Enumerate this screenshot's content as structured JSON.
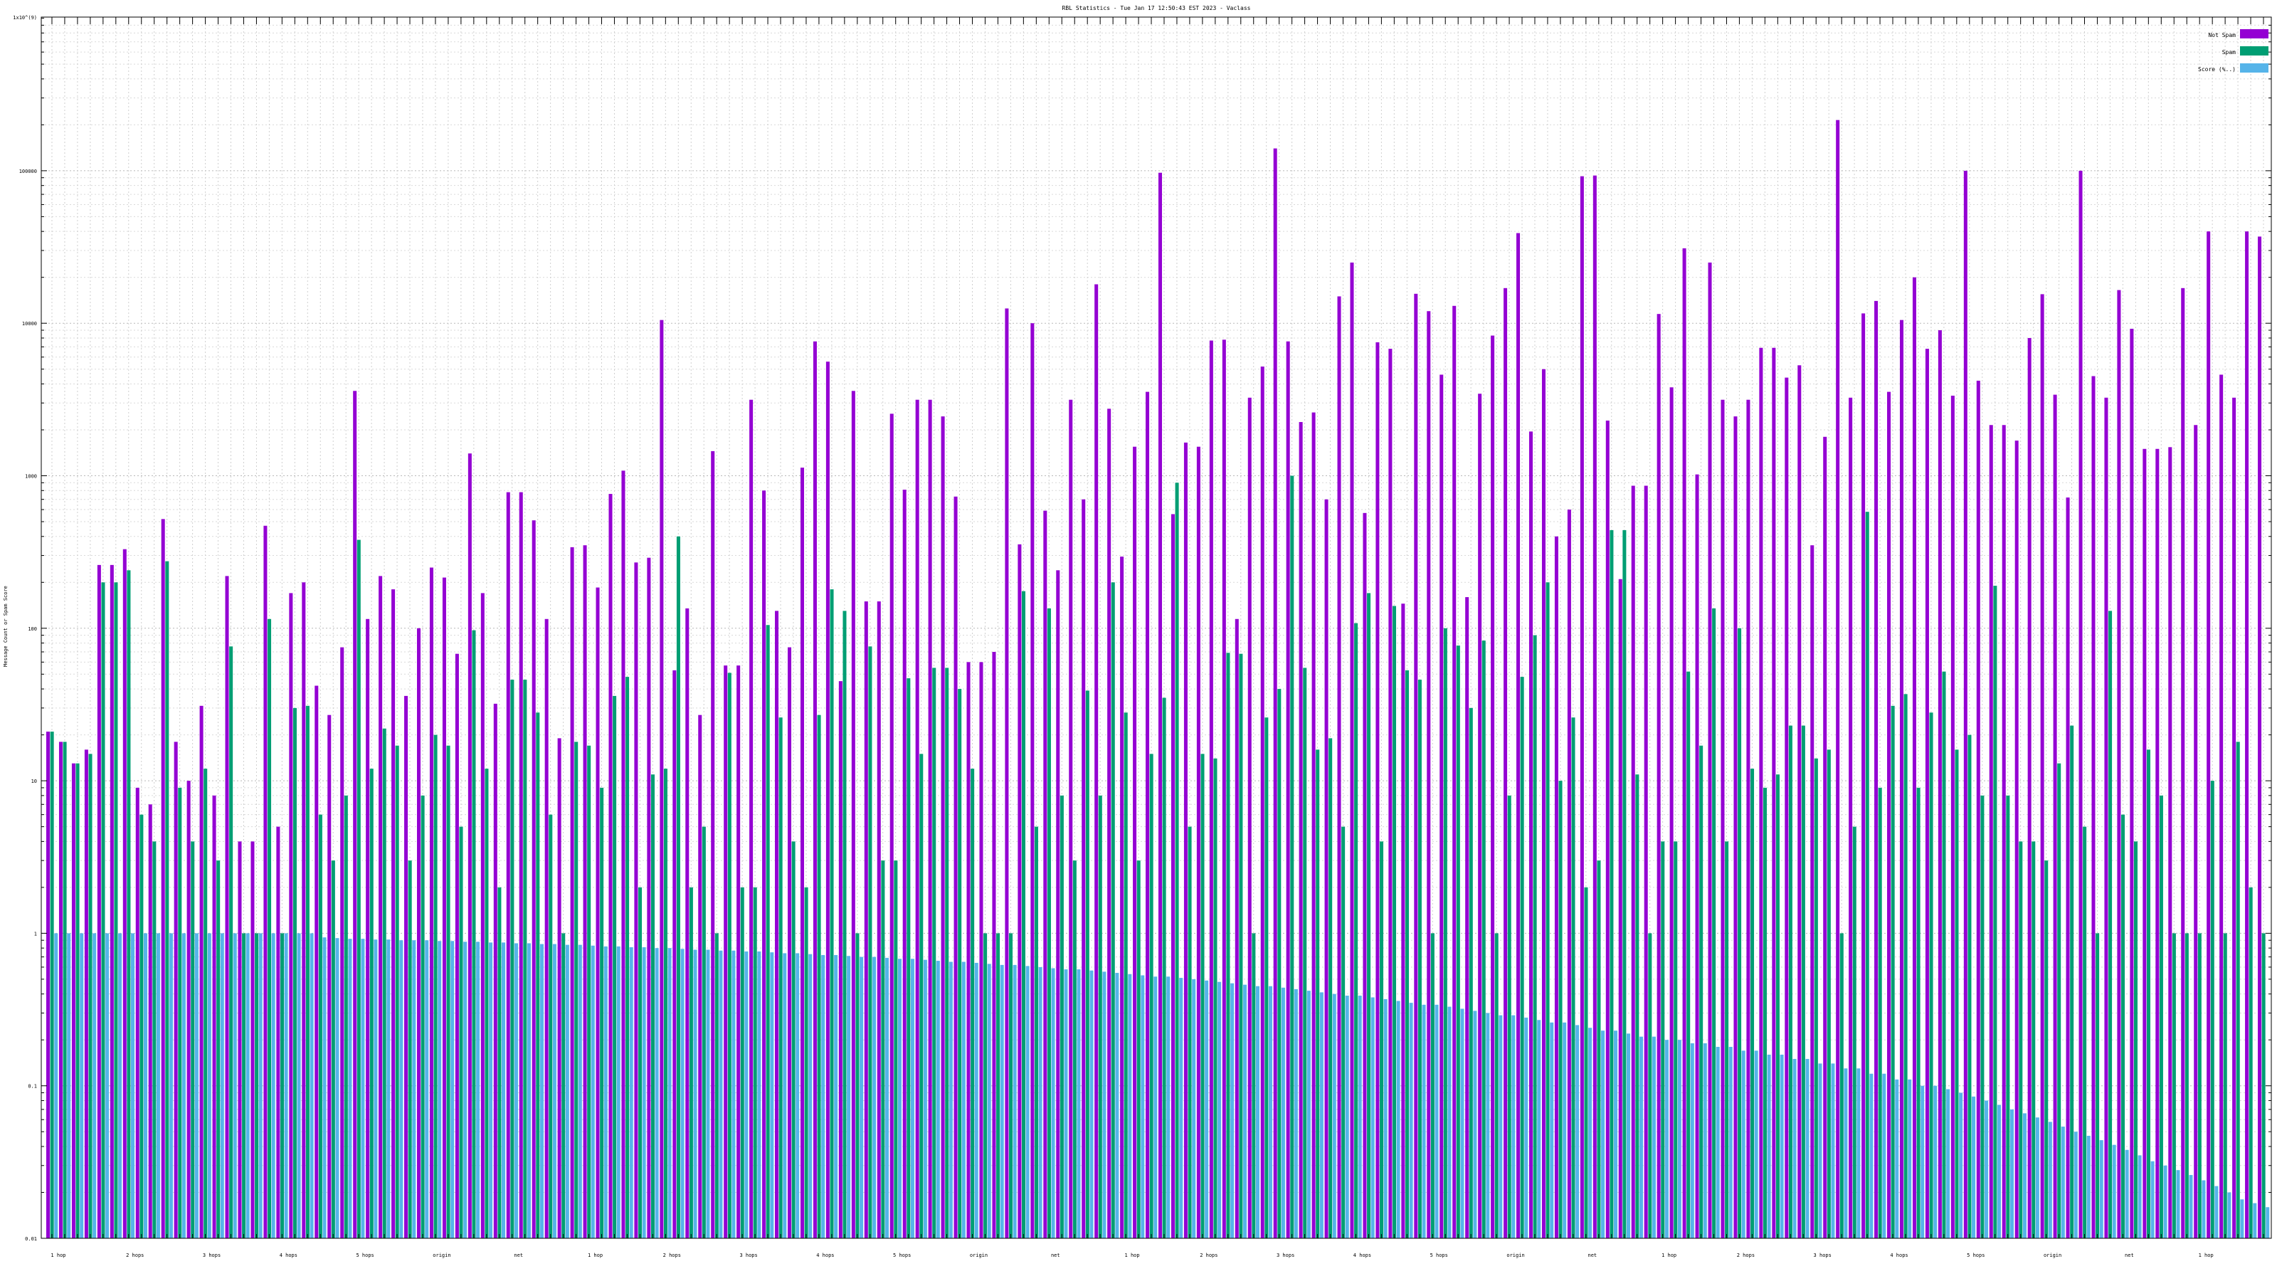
{
  "chart_data": {
    "type": "bar",
    "title": "RBL Statistics - Tue Jan 17 12:50:43 EST 2023 - Vaclass",
    "ylabel": "Message Count or Spam Score",
    "yscale": "log",
    "ylim": [
      0.01,
      1000000000
    ],
    "y_ticks": [
      {
        "value": 0.01,
        "label": "0.01"
      },
      {
        "value": 0.1,
        "label": "0.1"
      },
      {
        "value": 1,
        "label": "1"
      },
      {
        "value": 10,
        "label": "10"
      },
      {
        "value": 100,
        "label": "100"
      },
      {
        "value": 1000,
        "label": "1000"
      },
      {
        "value": 10000,
        "label": "10000"
      },
      {
        "value": 100000,
        "label": "100000"
      },
      {
        "value": 1000000000,
        "label": "1x10^(9)"
      }
    ],
    "grid": true,
    "legend_position": "top-right",
    "category_label_note": "Category labels are rendered too small to be legible in the screenshot; only the repeating hop-count fragments are readable.",
    "label_fragments": [
      "1 hop",
      "2 hops",
      "3 hops",
      "4 hops",
      "5 hops",
      "origin",
      "net"
    ],
    "series": [
      {
        "name": "Not Spam",
        "color": "#9400d3",
        "values": [
          21,
          18,
          13,
          16,
          260,
          260,
          330,
          9,
          7,
          520,
          18,
          10,
          31,
          8,
          220,
          4,
          4,
          470,
          5,
          170,
          200,
          42,
          27,
          75,
          3600,
          115,
          220,
          180,
          36,
          100,
          250,
          215,
          68,
          1400,
          170,
          32,
          780,
          780,
          510,
          115,
          19,
          340,
          350,
          185,
          760,
          1080,
          270,
          290,
          10500,
          53,
          135,
          27,
          1450,
          57,
          57,
          3150,
          800,
          130,
          75,
          1130,
          7600,
          5600,
          45,
          3600,
          150,
          150,
          2550,
          810,
          3150,
          3150,
          2450,
          730,
          60,
          60,
          70,
          12500,
          355,
          10000,
          590,
          240,
          3150,
          700,
          18000,
          2750,
          295,
          1550,
          3550,
          97000,
          560,
          1650,
          1550,
          7700,
          7800,
          115,
          3250,
          5200,
          140000,
          7600,
          2250,
          2600,
          700,
          15000,
          25000,
          570,
          7500,
          6800,
          145,
          15600,
          12000,
          4600,
          13000,
          160,
          3450,
          8300,
          17000,
          39000,
          1950,
          5000,
          400,
          600,
          92000,
          93000,
          2300,
          210,
          860,
          860,
          11500,
          3800,
          31000,
          1020,
          25000,
          3150,
          2450,
          3150,
          6900,
          6900,
          4400,
          5300,
          350,
          1800,
          215000,
          3250,
          11600,
          14000,
          3550,
          10500,
          20000,
          6800,
          9000,
          3350,
          100000,
          4200,
          2150,
          2150,
          1700,
          8000,
          15500,
          3400,
          720,
          100000,
          4500,
          3250,
          16500,
          9200,
          1500,
          1500,
          1540,
          17000,
          2150,
          40000,
          4600,
          3250,
          40000,
          37000
        ]
      },
      {
        "name": "Spam",
        "color": "#009e73",
        "values": [
          21,
          18,
          13,
          15,
          200,
          200,
          240,
          6,
          4,
          275,
          9,
          4,
          12,
          3,
          76,
          1,
          1,
          115,
          1,
          30,
          31,
          6,
          3,
          8,
          380,
          12,
          22,
          17,
          3,
          8,
          20,
          17,
          5,
          97,
          12,
          2,
          46,
          46,
          28,
          6,
          1,
          18,
          17,
          9,
          36,
          48,
          2,
          11,
          12,
          400,
          2,
          5,
          1,
          51,
          2,
          2,
          105,
          26,
          4,
          2,
          27,
          180,
          130,
          1,
          76,
          3,
          3,
          47,
          15,
          55,
          55,
          40,
          12,
          1,
          1,
          1,
          175,
          5,
          135,
          8,
          3,
          39,
          8,
          200,
          28,
          3,
          15,
          35,
          900,
          5,
          15,
          14,
          69,
          68,
          1,
          26,
          40,
          1000,
          55,
          16,
          19,
          5,
          108,
          170,
          4,
          140,
          53,
          46,
          1,
          100,
          77,
          30,
          83,
          1,
          8,
          48,
          90,
          200,
          10,
          26,
          2,
          3,
          440,
          440,
          11,
          1,
          4,
          4,
          52,
          17,
          135,
          4,
          100,
          12,
          9,
          11,
          23,
          23,
          14,
          16,
          1,
          5,
          580,
          9,
          31,
          37,
          9,
          28,
          52,
          16,
          20,
          8,
          190,
          8,
          4,
          4,
          3,
          13,
          23,
          5,
          1,
          130,
          6,
          4,
          16,
          8,
          1,
          1,
          1,
          10,
          1,
          18,
          2,
          1,
          7,
          5
        ]
      },
      {
        "name": "Score (%..)",
        "color": "#56b4e9",
        "values": [
          1,
          1,
          1,
          1,
          1,
          1,
          1,
          1,
          1,
          1,
          1,
          1,
          1,
          1,
          1,
          1,
          1,
          1,
          1,
          1,
          1,
          0.94,
          0.93,
          0.92,
          0.92,
          0.91,
          0.91,
          0.9,
          0.9,
          0.9,
          0.89,
          0.89,
          0.88,
          0.88,
          0.87,
          0.87,
          0.86,
          0.86,
          0.85,
          0.85,
          0.84,
          0.84,
          0.83,
          0.82,
          0.82,
          0.81,
          0.81,
          0.8,
          0.8,
          0.79,
          0.78,
          0.78,
          0.77,
          0.77,
          0.76,
          0.76,
          0.75,
          0.74,
          0.74,
          0.73,
          0.72,
          0.72,
          0.71,
          0.7,
          0.7,
          0.69,
          0.68,
          0.68,
          0.67,
          0.66,
          0.65,
          0.65,
          0.64,
          0.63,
          0.62,
          0.62,
          0.61,
          0.6,
          0.59,
          0.58,
          0.58,
          0.57,
          0.56,
          0.55,
          0.54,
          0.53,
          0.52,
          0.52,
          0.51,
          0.5,
          0.49,
          0.48,
          0.47,
          0.46,
          0.45,
          0.45,
          0.44,
          0.43,
          0.42,
          0.41,
          0.4,
          0.39,
          0.39,
          0.38,
          0.37,
          0.36,
          0.35,
          0.34,
          0.34,
          0.33,
          0.32,
          0.31,
          0.3,
          0.29,
          0.29,
          0.28,
          0.27,
          0.26,
          0.26,
          0.25,
          0.24,
          0.23,
          0.23,
          0.22,
          0.21,
          0.21,
          0.2,
          0.2,
          0.19,
          0.19,
          0.18,
          0.18,
          0.17,
          0.17,
          0.16,
          0.16,
          0.15,
          0.15,
          0.14,
          0.14,
          0.13,
          0.13,
          0.12,
          0.12,
          0.11,
          0.11,
          0.1,
          0.1,
          0.095,
          0.09,
          0.085,
          0.08,
          0.075,
          0.07,
          0.066,
          0.062,
          0.058,
          0.054,
          0.05,
          0.047,
          0.044,
          0.041,
          0.038,
          0.035,
          0.032,
          0.03,
          0.028,
          0.026,
          0.024,
          0.022,
          0.02,
          0.018,
          0.017,
          0.016,
          0.015,
          0.014,
          0.013,
          0.012,
          0.011,
          0.01
        ]
      }
    ]
  }
}
